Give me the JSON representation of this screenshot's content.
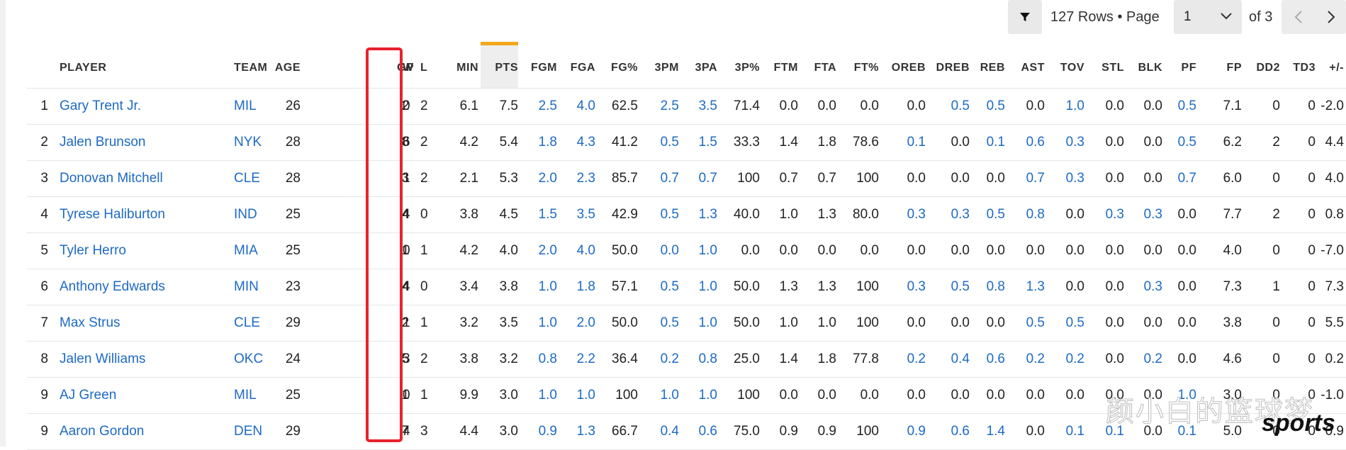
{
  "toolbar": {
    "rows_text": "127 Rows • Page",
    "page_value": "1",
    "of_text": "of 3",
    "icons": {
      "filter": "filter-icon",
      "chevron": "chevron-down-icon",
      "prev": "chevron-left-icon",
      "next": "chevron-right-icon"
    }
  },
  "table": {
    "columns": [
      "PLAYER",
      "TEAM",
      "AGE",
      "GP",
      "W",
      "L",
      "MIN",
      "PTS",
      "FGM",
      "FGA",
      "FG%",
      "3PM",
      "3PA",
      "3P%",
      "FTM",
      "FTA",
      "FT%",
      "OREB",
      "DREB",
      "REB",
      "AST",
      "TOV",
      "STL",
      "BLK",
      "PF",
      "FP",
      "DD2",
      "TD3",
      "+/-"
    ],
    "sorted_column": "PTS",
    "rows": [
      [
        "1",
        "Gary Trent Jr.",
        "MIL",
        "26",
        "2",
        "0",
        "2",
        "6.1",
        "7.5",
        "2.5",
        "4.0",
        "62.5",
        "2.5",
        "3.5",
        "71.4",
        "0.0",
        "0.0",
        "0.0",
        "0.0",
        "0.5",
        "0.5",
        "0.0",
        "1.0",
        "0.0",
        "0.0",
        "0.5",
        "7.1",
        "0",
        "0",
        "-2.0"
      ],
      [
        "2",
        "Jalen Brunson",
        "NYK",
        "28",
        "8",
        "6",
        "2",
        "4.2",
        "5.4",
        "1.8",
        "4.3",
        "41.2",
        "0.5",
        "1.5",
        "33.3",
        "1.4",
        "1.8",
        "78.6",
        "0.1",
        "0.0",
        "0.1",
        "0.6",
        "0.3",
        "0.0",
        "0.0",
        "0.5",
        "6.2",
        "2",
        "0",
        "4.4"
      ],
      [
        "3",
        "Donovan Mitchell",
        "CLE",
        "28",
        "3",
        "1",
        "2",
        "2.1",
        "5.3",
        "2.0",
        "2.3",
        "85.7",
        "0.7",
        "0.7",
        "100",
        "0.7",
        "0.7",
        "100",
        "0.0",
        "0.0",
        "0.0",
        "0.7",
        "0.3",
        "0.0",
        "0.0",
        "0.7",
        "6.0",
        "0",
        "0",
        "4.0"
      ],
      [
        "4",
        "Tyrese Haliburton",
        "IND",
        "25",
        "4",
        "4",
        "0",
        "3.8",
        "4.5",
        "1.5",
        "3.5",
        "42.9",
        "0.5",
        "1.3",
        "40.0",
        "1.0",
        "1.3",
        "80.0",
        "0.3",
        "0.3",
        "0.5",
        "0.8",
        "0.0",
        "0.3",
        "0.3",
        "0.0",
        "7.7",
        "2",
        "0",
        "0.8"
      ],
      [
        "5",
        "Tyler Herro",
        "MIA",
        "25",
        "1",
        "0",
        "1",
        "4.2",
        "4.0",
        "2.0",
        "4.0",
        "50.0",
        "0.0",
        "1.0",
        "0.0",
        "0.0",
        "0.0",
        "0.0",
        "0.0",
        "0.0",
        "0.0",
        "0.0",
        "0.0",
        "0.0",
        "0.0",
        "0.0",
        "4.0",
        "0",
        "0",
        "-7.0"
      ],
      [
        "6",
        "Anthony Edwards",
        "MIN",
        "23",
        "4",
        "4",
        "0",
        "3.4",
        "3.8",
        "1.0",
        "1.8",
        "57.1",
        "0.5",
        "1.0",
        "50.0",
        "1.3",
        "1.3",
        "100",
        "0.3",
        "0.5",
        "0.8",
        "1.3",
        "0.0",
        "0.0",
        "0.3",
        "0.0",
        "7.3",
        "1",
        "0",
        "7.3"
      ],
      [
        "7",
        "Max Strus",
        "CLE",
        "29",
        "2",
        "1",
        "1",
        "3.2",
        "3.5",
        "1.0",
        "2.0",
        "50.0",
        "0.5",
        "1.0",
        "50.0",
        "1.0",
        "1.0",
        "100",
        "0.0",
        "0.0",
        "0.0",
        "0.5",
        "0.5",
        "0.0",
        "0.0",
        "0.0",
        "3.8",
        "0",
        "0",
        "5.5"
      ],
      [
        "8",
        "Jalen Williams",
        "OKC",
        "24",
        "5",
        "3",
        "2",
        "3.8",
        "3.2",
        "0.8",
        "2.2",
        "36.4",
        "0.2",
        "0.8",
        "25.0",
        "1.4",
        "1.8",
        "77.8",
        "0.2",
        "0.4",
        "0.6",
        "0.2",
        "0.2",
        "0.0",
        "0.2",
        "0.0",
        "4.6",
        "0",
        "0",
        "0.2"
      ],
      [
        "9",
        "AJ Green",
        "MIL",
        "25",
        "1",
        "0",
        "1",
        "9.9",
        "3.0",
        "1.0",
        "1.0",
        "100",
        "1.0",
        "1.0",
        "100",
        "0.0",
        "0.0",
        "0.0",
        "0.0",
        "0.0",
        "0.0",
        "0.0",
        "0.0",
        "0.0",
        "0.0",
        "1.0",
        "3.0",
        "0",
        "0",
        "-1.0"
      ],
      [
        "9",
        "Aaron Gordon",
        "DEN",
        "29",
        "7",
        "4",
        "3",
        "4.4",
        "3.0",
        "0.9",
        "1.3",
        "66.7",
        "0.4",
        "0.6",
        "75.0",
        "0.9",
        "0.9",
        "100",
        "0.9",
        "0.6",
        "1.4",
        "0.0",
        "0.1",
        "0.1",
        "0.0",
        "0.1",
        "5.0",
        "0",
        "0",
        "0.9"
      ]
    ]
  },
  "overlay": {
    "watermark": "颜小白的篮球梦",
    "brand": "sports"
  },
  "colors": {
    "link": "#1d6ac4",
    "sort_indicator": "#f1a81b",
    "highlight_box": "#e8222d"
  }
}
